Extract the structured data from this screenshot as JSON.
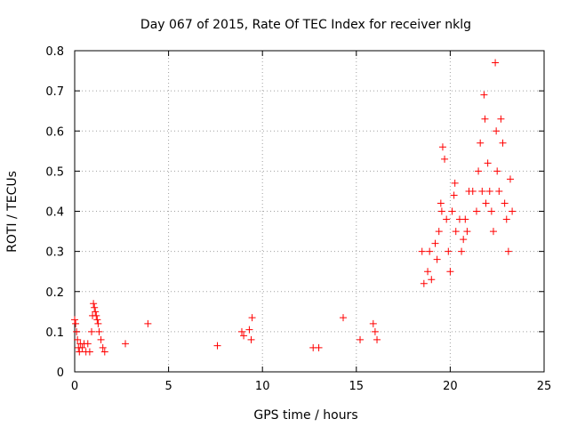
{
  "chart_data": {
    "type": "scatter",
    "title": "Day 067 of 2015, Rate Of TEC Index for receiver nklg",
    "xlabel": "GPS time / hours",
    "ylabel": "ROTI / TECUs",
    "xlim": [
      0,
      25
    ],
    "ylim": [
      0,
      0.8
    ],
    "grid": true,
    "marker": "+",
    "marker_color": "#ff0000",
    "x_ticks": [
      0,
      5,
      10,
      15,
      20,
      25
    ],
    "x_tick_labels": [
      "0",
      "5",
      "10",
      "15",
      "20",
      "25"
    ],
    "y_ticks": [
      0,
      0.1,
      0.2,
      0.3,
      0.4,
      0.5,
      0.6,
      0.7,
      0.8
    ],
    "y_tick_labels": [
      "0",
      "0.1",
      "0.2",
      "0.3",
      "0.4",
      "0.5",
      "0.6",
      "0.7",
      "0.8"
    ],
    "series": [
      {
        "name": "ROTI",
        "points": [
          [
            0.0,
            0.13
          ],
          [
            0.05,
            0.12
          ],
          [
            0.1,
            0.1
          ],
          [
            0.15,
            0.08
          ],
          [
            0.2,
            0.06
          ],
          [
            0.25,
            0.05
          ],
          [
            0.3,
            0.07
          ],
          [
            0.4,
            0.06
          ],
          [
            0.5,
            0.07
          ],
          [
            0.6,
            0.05
          ],
          [
            0.7,
            0.07
          ],
          [
            0.8,
            0.05
          ],
          [
            0.9,
            0.1
          ],
          [
            0.95,
            0.14
          ],
          [
            1.0,
            0.17
          ],
          [
            1.05,
            0.16
          ],
          [
            1.1,
            0.15
          ],
          [
            1.15,
            0.14
          ],
          [
            1.2,
            0.13
          ],
          [
            1.25,
            0.12
          ],
          [
            1.3,
            0.1
          ],
          [
            1.4,
            0.08
          ],
          [
            1.5,
            0.06
          ],
          [
            1.6,
            0.05
          ],
          [
            2.7,
            0.07
          ],
          [
            3.9,
            0.12
          ],
          [
            7.6,
            0.065
          ],
          [
            8.9,
            0.1
          ],
          [
            9.0,
            0.09
          ],
          [
            9.3,
            0.105
          ],
          [
            9.4,
            0.08
          ],
          [
            9.45,
            0.135
          ],
          [
            12.7,
            0.06
          ],
          [
            13.0,
            0.06
          ],
          [
            14.3,
            0.135
          ],
          [
            15.2,
            0.08
          ],
          [
            15.9,
            0.12
          ],
          [
            16.0,
            0.1
          ],
          [
            16.1,
            0.08
          ],
          [
            18.5,
            0.3
          ],
          [
            18.6,
            0.22
          ],
          [
            18.8,
            0.25
          ],
          [
            18.9,
            0.3
          ],
          [
            19.0,
            0.23
          ],
          [
            19.2,
            0.32
          ],
          [
            19.3,
            0.28
          ],
          [
            19.4,
            0.35
          ],
          [
            19.5,
            0.42
          ],
          [
            19.55,
            0.4
          ],
          [
            19.6,
            0.56
          ],
          [
            19.7,
            0.53
          ],
          [
            19.8,
            0.38
          ],
          [
            19.9,
            0.3
          ],
          [
            20.0,
            0.25
          ],
          [
            20.1,
            0.4
          ],
          [
            20.2,
            0.44
          ],
          [
            20.25,
            0.47
          ],
          [
            20.3,
            0.35
          ],
          [
            20.5,
            0.38
          ],
          [
            20.6,
            0.3
          ],
          [
            20.7,
            0.33
          ],
          [
            20.8,
            0.38
          ],
          [
            20.9,
            0.35
          ],
          [
            21.0,
            0.45
          ],
          [
            21.2,
            0.45
          ],
          [
            21.4,
            0.4
          ],
          [
            21.5,
            0.5
          ],
          [
            21.6,
            0.57
          ],
          [
            21.7,
            0.45
          ],
          [
            21.8,
            0.69
          ],
          [
            21.85,
            0.63
          ],
          [
            21.9,
            0.42
          ],
          [
            22.0,
            0.52
          ],
          [
            22.1,
            0.45
          ],
          [
            22.2,
            0.4
          ],
          [
            22.3,
            0.35
          ],
          [
            22.4,
            0.77
          ],
          [
            22.45,
            0.6
          ],
          [
            22.5,
            0.5
          ],
          [
            22.6,
            0.45
          ],
          [
            22.7,
            0.63
          ],
          [
            22.8,
            0.57
          ],
          [
            22.9,
            0.42
          ],
          [
            23.0,
            0.38
          ],
          [
            23.1,
            0.3
          ],
          [
            23.2,
            0.48
          ],
          [
            23.3,
            0.4
          ]
        ]
      }
    ]
  }
}
